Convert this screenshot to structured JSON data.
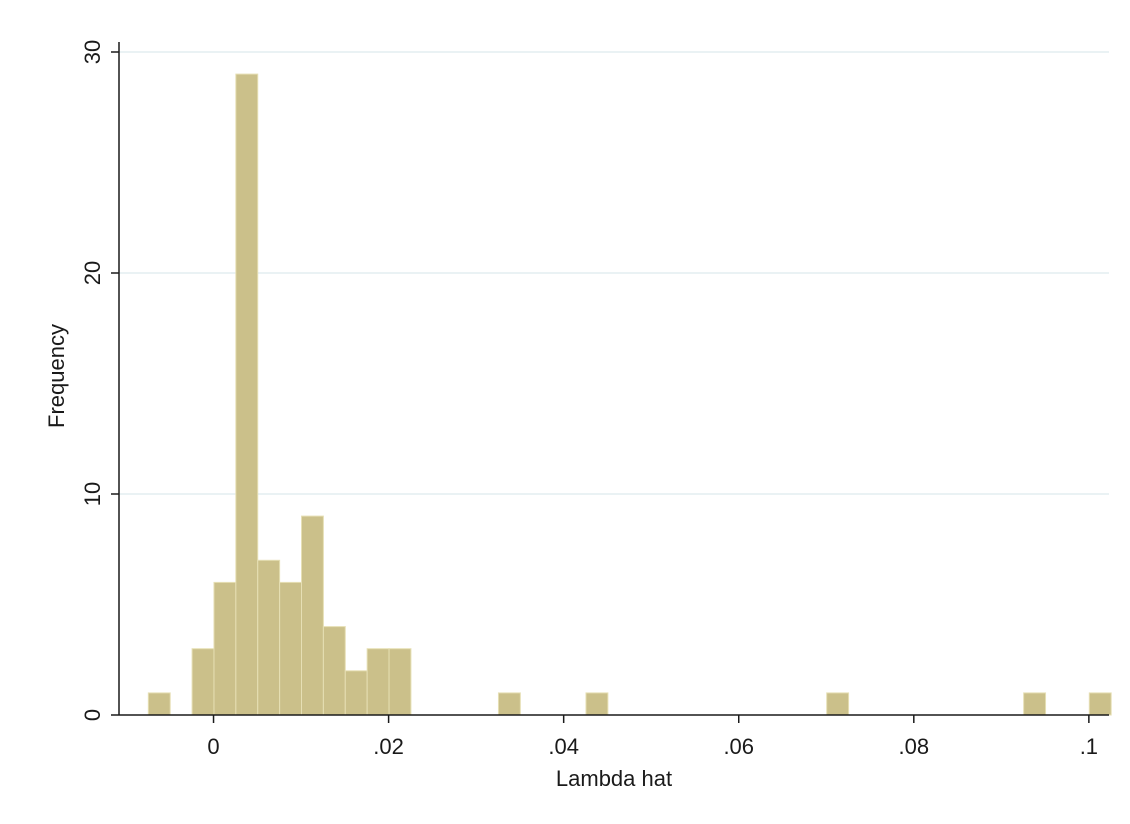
{
  "chart_data": {
    "type": "bar",
    "subtype": "histogram",
    "xlabel": "Lambda hat",
    "ylabel": "Frequency",
    "xlim": [
      -0.0108,
      0.1023
    ],
    "ylim": [
      0,
      30
    ],
    "x_ticks": [
      0,
      0.02,
      0.04,
      0.06,
      0.08,
      0.1
    ],
    "x_tick_labels": [
      "0",
      ".02",
      ".04",
      ".06",
      ".08",
      ".1"
    ],
    "y_ticks": [
      0,
      10,
      20,
      30
    ],
    "y_tick_labels": [
      "0",
      "10",
      "20",
      "30"
    ],
    "grid": true,
    "bar_color": "#cbc08a",
    "bar_edge_color": "#e6dfb4",
    "bin_width": 0.0025,
    "bins": [
      {
        "x": -0.0062,
        "count": 1
      },
      {
        "x": -0.0012,
        "count": 3
      },
      {
        "x": 0.0013,
        "count": 6
      },
      {
        "x": 0.0038,
        "count": 29
      },
      {
        "x": 0.0063,
        "count": 7
      },
      {
        "x": 0.0088,
        "count": 6
      },
      {
        "x": 0.0113,
        "count": 9
      },
      {
        "x": 0.0138,
        "count": 4
      },
      {
        "x": 0.0163,
        "count": 2
      },
      {
        "x": 0.0188,
        "count": 3
      },
      {
        "x": 0.0213,
        "count": 3
      },
      {
        "x": 0.0338,
        "count": 1
      },
      {
        "x": 0.0438,
        "count": 1
      },
      {
        "x": 0.0713,
        "count": 1
      },
      {
        "x": 0.0938,
        "count": 1
      },
      {
        "x": 0.1013,
        "count": 1
      }
    ]
  }
}
